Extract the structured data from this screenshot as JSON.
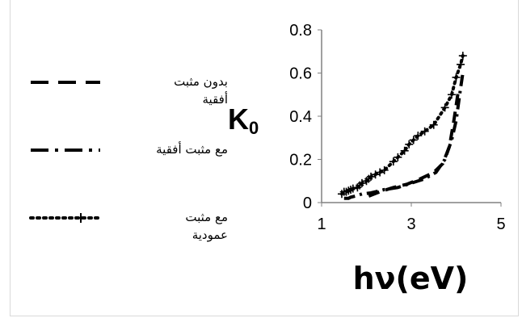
{
  "chart_data": {
    "type": "line",
    "title": "",
    "xlabel": "hν(eV)",
    "ylabel_main": "K",
    "ylabel_sub": "0",
    "xlim": [
      1,
      5
    ],
    "ylim": [
      0,
      0.8
    ],
    "xticks": [
      1,
      3,
      5
    ],
    "yticks": [
      0,
      0.2,
      0.4,
      0.6,
      0.8
    ],
    "xtick_labels": [
      "1",
      "3",
      "5"
    ],
    "ytick_labels": [
      "0",
      "0.2",
      "0.4",
      "0.6",
      "0.8"
    ],
    "grid": false,
    "legend_position": "left",
    "series": [
      {
        "name": "بدون مثبت أفقية",
        "style": "dash",
        "color": "#000000",
        "points": [
          [
            2.05,
            0.03
          ],
          [
            2.3,
            0.05
          ],
          [
            2.6,
            0.07
          ],
          [
            2.9,
            0.085
          ],
          [
            3.2,
            0.11
          ],
          [
            3.5,
            0.14
          ],
          [
            3.7,
            0.18
          ],
          [
            3.85,
            0.26
          ],
          [
            3.95,
            0.38
          ],
          [
            4.0,
            0.45
          ],
          [
            4.05,
            0.52
          ]
        ]
      },
      {
        "name": "مع مثبت أفقية",
        "style": "dashdot",
        "color": "#000000",
        "points": [
          [
            1.5,
            0.02
          ],
          [
            1.55,
            0.02
          ],
          [
            1.6,
            0.02
          ],
          [
            1.65,
            0.025
          ],
          [
            1.75,
            0.03
          ],
          [
            1.9,
            0.04
          ],
          [
            2.1,
            0.045
          ],
          [
            2.4,
            0.06
          ],
          [
            2.7,
            0.07
          ],
          [
            3.0,
            0.09
          ],
          [
            3.3,
            0.11
          ],
          [
            3.55,
            0.14
          ],
          [
            3.75,
            0.2
          ],
          [
            3.9,
            0.29
          ],
          [
            4.0,
            0.38
          ],
          [
            4.1,
            0.53
          ],
          [
            4.15,
            0.6
          ]
        ]
      },
      {
        "name": "مع مثبت عمودية",
        "style": "dot-plus",
        "color": "#000000",
        "points": [
          [
            1.45,
            0.04
          ],
          [
            1.5,
            0.05
          ],
          [
            1.55,
            0.05
          ],
          [
            1.6,
            0.055
          ],
          [
            1.65,
            0.06
          ],
          [
            1.7,
            0.065
          ],
          [
            1.8,
            0.07
          ],
          [
            1.85,
            0.08
          ],
          [
            1.9,
            0.09
          ],
          [
            2.0,
            0.1
          ],
          [
            2.05,
            0.11
          ],
          [
            2.1,
            0.12
          ],
          [
            2.2,
            0.13
          ],
          [
            2.3,
            0.14
          ],
          [
            2.4,
            0.15
          ],
          [
            2.6,
            0.19
          ],
          [
            2.7,
            0.21
          ],
          [
            2.85,
            0.24
          ],
          [
            2.95,
            0.27
          ],
          [
            3.05,
            0.29
          ],
          [
            3.15,
            0.31
          ],
          [
            3.3,
            0.33
          ],
          [
            3.5,
            0.36
          ],
          [
            3.75,
            0.44
          ],
          [
            3.9,
            0.5
          ],
          [
            4.0,
            0.58
          ],
          [
            4.1,
            0.64
          ],
          [
            4.15,
            0.68
          ]
        ]
      }
    ]
  },
  "legend": {
    "items": [
      {
        "label_line1": "بدون مثبت",
        "label_line2": "أفقية"
      },
      {
        "label_line1": "مع مثبت أفقية",
        "label_line2": ""
      },
      {
        "label_line1": "مع مثبت",
        "label_line2": "عمودية"
      }
    ]
  }
}
